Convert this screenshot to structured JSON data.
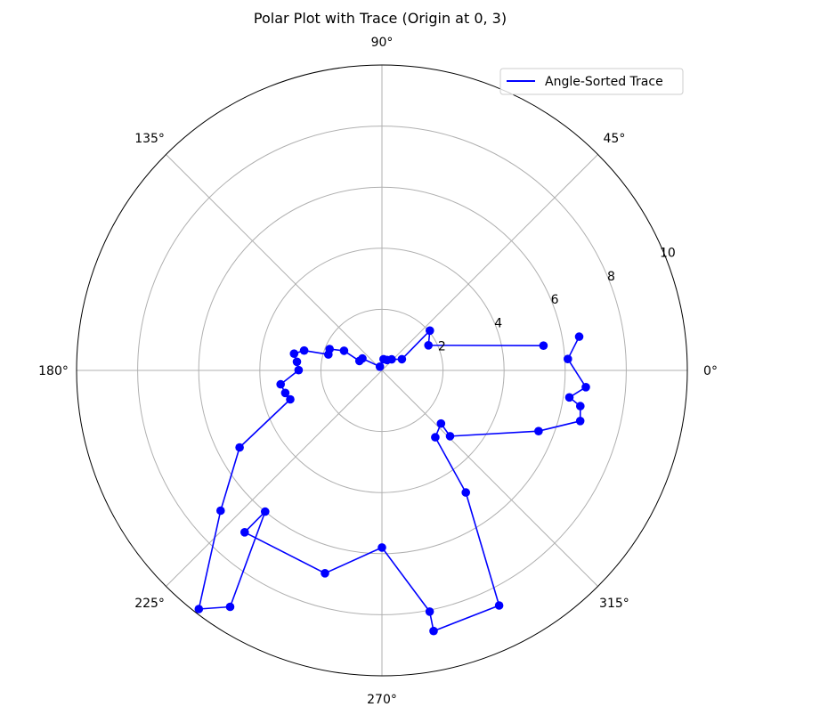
{
  "chart_data": {
    "type": "line",
    "projection": "polar",
    "title": "Polar Plot with Trace (Origin at 0, 3)",
    "theta_ticks": [
      "0°",
      "45°",
      "90°",
      "135°",
      "180°",
      "225°",
      "270°",
      "315°"
    ],
    "theta_tick_values_deg": [
      0,
      45,
      90,
      135,
      180,
      225,
      270,
      315
    ],
    "r_ticks": [
      "2",
      "4",
      "6",
      "8",
      "10"
    ],
    "r_tick_values": [
      2,
      4,
      6,
      8,
      10
    ],
    "rlim": [
      0,
      10
    ],
    "grid": true,
    "legend_position": "top-right",
    "line_color": "#0000ff",
    "marker": "circle",
    "series": [
      {
        "name": "Angle-Sorted Trace",
        "points": [
          {
            "theta": 9.7,
            "r": 6.55
          },
          {
            "theta": 3.5,
            "r": 6.1
          },
          {
            "theta": -4.7,
            "r": 6.7
          },
          {
            "theta": -8.2,
            "r": 6.2
          },
          {
            "theta": -10.2,
            "r": 6.6
          },
          {
            "theta": -14.3,
            "r": 6.7
          },
          {
            "theta": -21.2,
            "r": 5.5
          },
          {
            "theta": -44.0,
            "r": 3.1
          },
          {
            "theta": -42.0,
            "r": 2.6
          },
          {
            "theta": -51.4,
            "r": 2.8
          },
          {
            "theta": -55.5,
            "r": 4.85
          },
          {
            "theta": -63.5,
            "r": 8.6
          },
          {
            "theta": -78.8,
            "r": 8.7
          },
          {
            "theta": -78.8,
            "r": 8.05
          },
          {
            "theta": -90.0,
            "r": 5.8
          },
          {
            "theta": -105.7,
            "r": 6.9
          },
          {
            "theta": -130.3,
            "r": 6.95
          },
          {
            "theta": -129.6,
            "r": 6.0
          },
          {
            "theta": -122.7,
            "r": 9.2
          },
          {
            "theta": -127.5,
            "r": 9.85
          },
          {
            "theta": -139.0,
            "r": 7.0
          },
          {
            "theta": -151.6,
            "r": 5.3
          },
          {
            "theta": -162.5,
            "r": 3.15
          },
          {
            "theta": -166.9,
            "r": 3.25
          },
          {
            "theta": -172.2,
            "r": 3.35
          },
          {
            "theta": 179.8,
            "r": 2.73
          },
          {
            "theta": 174.2,
            "r": 2.8
          },
          {
            "theta": 169.2,
            "r": 2.93
          },
          {
            "theta": 165.7,
            "r": 2.63
          },
          {
            "theta": 163.4,
            "r": 1.83
          },
          {
            "theta": 157.8,
            "r": 1.85
          },
          {
            "theta": 152.6,
            "r": 1.4
          },
          {
            "theta": 157.3,
            "r": 0.8
          },
          {
            "theta": 148.7,
            "r": 0.75
          },
          {
            "theta": 118.5,
            "r": 0.14
          },
          {
            "theta": 81.7,
            "r": 0.37
          },
          {
            "theta": 63.4,
            "r": 0.38
          },
          {
            "theta": 48.7,
            "r": 0.48
          },
          {
            "theta": 29.4,
            "r": 0.75
          },
          {
            "theta": 39.7,
            "r": 2.04
          },
          {
            "theta": 28.4,
            "r": 1.73
          },
          {
            "theta": 8.7,
            "r": 5.35
          }
        ]
      }
    ]
  }
}
